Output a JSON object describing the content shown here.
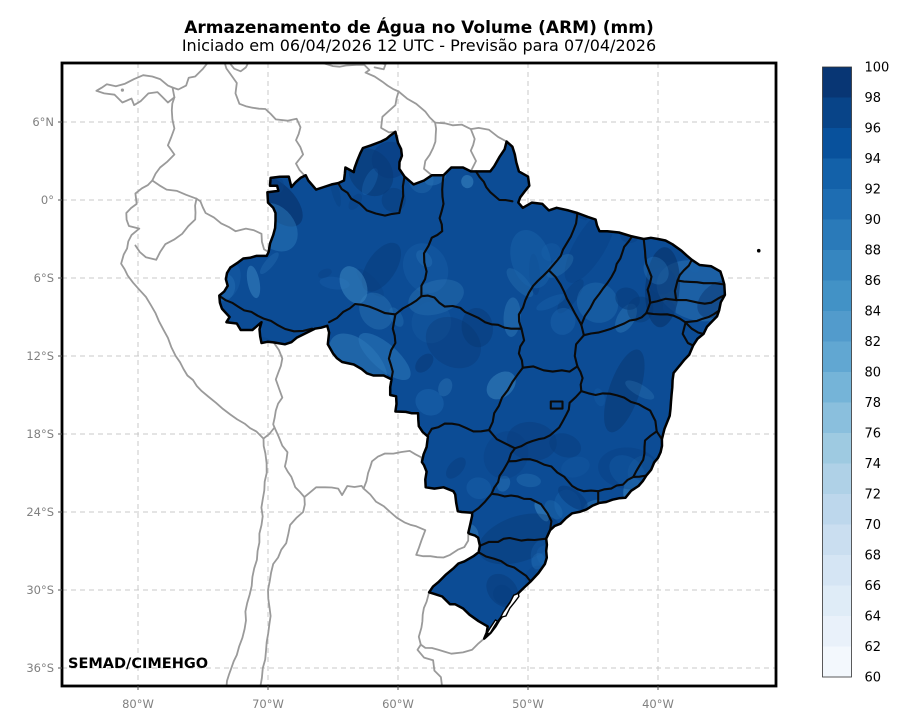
{
  "figure": {
    "title": "Armazenamento de Água no Volume (ARM) (mm)",
    "subtitle": "Iniciado em 06/04/2026 12 UTC - Previsão para 07/04/2026",
    "credit": "SEMAD/CIMEHGO"
  },
  "axes": {
    "lat_tick_labels": [
      "6°N",
      "0°",
      "6°S",
      "12°S",
      "18°S",
      "24°S",
      "30°S",
      "36°S"
    ],
    "lon_tick_labels": [
      "80°W",
      "70°W",
      "60°W",
      "50°W",
      "40°W"
    ],
    "tick_label_color": "#808080",
    "gridline_color": "#c9c9c9",
    "frame_color": "#000000"
  },
  "colorbar": {
    "min": 60,
    "max": 100,
    "step": 2,
    "tick_labels": [
      "100",
      "98",
      "96",
      "94",
      "92",
      "90",
      "88",
      "86",
      "84",
      "82",
      "80",
      "78",
      "76",
      "74",
      "72",
      "70",
      "68",
      "66",
      "64",
      "62",
      "60"
    ],
    "bin_colors_low_to_high": [
      "#f3f8fd",
      "#e9f1fa",
      "#dfecf7",
      "#d5e5f4",
      "#cadef0",
      "#bdd7ec",
      "#afd1e7",
      "#9ecae1",
      "#8abfdd",
      "#75b4d8",
      "#61a7d2",
      "#529bcc",
      "#4292c6",
      "#3686c0",
      "#2a7ab9",
      "#1e6db2",
      "#1361a9",
      "#08519c",
      "#084488",
      "#083674"
    ],
    "label_color": "#000000"
  },
  "map": {
    "filled_region": "Brasil (estados)",
    "fill_base_color": "#0c4c95",
    "fill_dark_patch_colors": [
      "#082f65",
      "#083a7a",
      "#0a4286"
    ],
    "fill_light_patch_colors": [
      "#1b64ad",
      "#2b77b9",
      "#3b87c2"
    ],
    "state_border_color": "#0a0a0a",
    "country_border_color": "#9a9a9a",
    "lagoon_fill": "#ffffff"
  }
}
